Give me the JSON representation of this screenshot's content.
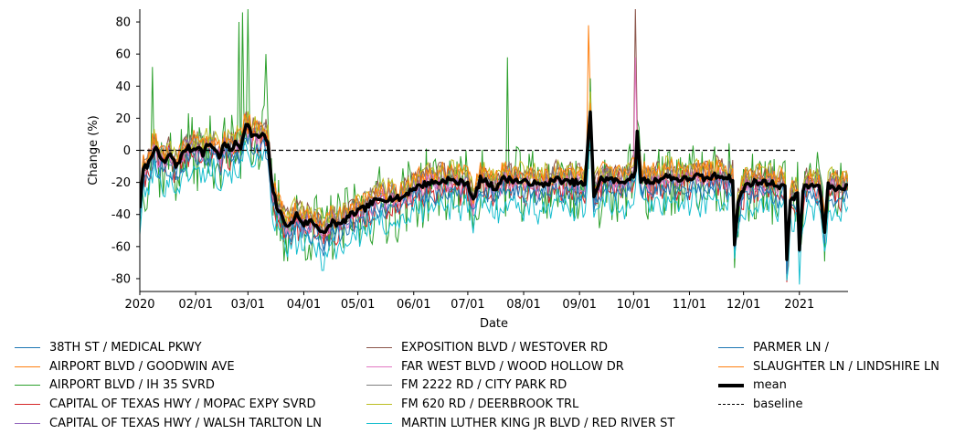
{
  "chart_data": {
    "type": "line",
    "xlabel": "Date",
    "ylabel": "Change (%)",
    "ylim": [
      -88,
      88
    ],
    "yticks": [
      -80,
      -60,
      -40,
      -20,
      0,
      20,
      40,
      60,
      80
    ],
    "xlim": [
      "2020-01-01",
      "2021-01-28"
    ],
    "xticks": [
      {
        "date": "2020-01-01",
        "label": "2020"
      },
      {
        "date": "2020-02-01",
        "label": "02/01"
      },
      {
        "date": "2020-03-01",
        "label": "03/01"
      },
      {
        "date": "2020-04-01",
        "label": "04/01"
      },
      {
        "date": "2020-05-01",
        "label": "05/01"
      },
      {
        "date": "2020-06-01",
        "label": "06/01"
      },
      {
        "date": "2020-07-01",
        "label": "07/01"
      },
      {
        "date": "2020-08-01",
        "label": "08/01"
      },
      {
        "date": "2020-09-01",
        "label": "09/01"
      },
      {
        "date": "2020-10-01",
        "label": "10/01"
      },
      {
        "date": "2020-11-01",
        "label": "11/01"
      },
      {
        "date": "2020-12-01",
        "label": "12/01"
      },
      {
        "date": "2021-01-01",
        "label": "2021"
      }
    ],
    "baseline": 0,
    "grid": false,
    "legend_position": "below",
    "mean_keypoints": [
      [
        "2020-01-01",
        -35
      ],
      [
        "2020-01-03",
        -12
      ],
      [
        "2020-01-06",
        -8
      ],
      [
        "2020-01-09",
        2
      ],
      [
        "2020-01-12",
        -4
      ],
      [
        "2020-01-15",
        -8
      ],
      [
        "2020-01-18",
        -2
      ],
      [
        "2020-01-21",
        -10
      ],
      [
        "2020-01-24",
        -4
      ],
      [
        "2020-01-27",
        2
      ],
      [
        "2020-01-30",
        0
      ],
      [
        "2020-02-02",
        3
      ],
      [
        "2020-02-05",
        -2
      ],
      [
        "2020-02-08",
        4
      ],
      [
        "2020-02-11",
        2
      ],
      [
        "2020-02-14",
        -4
      ],
      [
        "2020-02-17",
        4
      ],
      [
        "2020-02-20",
        0
      ],
      [
        "2020-02-23",
        4
      ],
      [
        "2020-02-26",
        2
      ],
      [
        "2020-02-29",
        18
      ],
      [
        "2020-03-03",
        10
      ],
      [
        "2020-03-06",
        8
      ],
      [
        "2020-03-09",
        10
      ],
      [
        "2020-03-12",
        5
      ],
      [
        "2020-03-14",
        -20
      ],
      [
        "2020-03-17",
        -35
      ],
      [
        "2020-03-20",
        -42
      ],
      [
        "2020-03-24",
        -48
      ],
      [
        "2020-03-28",
        -40
      ],
      [
        "2020-04-01",
        -46
      ],
      [
        "2020-04-05",
        -44
      ],
      [
        "2020-04-09",
        -48
      ],
      [
        "2020-04-13",
        -52
      ],
      [
        "2020-04-17",
        -44
      ],
      [
        "2020-04-21",
        -47
      ],
      [
        "2020-04-25",
        -42
      ],
      [
        "2020-05-01",
        -38
      ],
      [
        "2020-05-05",
        -36
      ],
      [
        "2020-05-10",
        -32
      ],
      [
        "2020-05-15",
        -30
      ],
      [
        "2020-05-20",
        -30
      ],
      [
        "2020-05-25",
        -30
      ],
      [
        "2020-05-31",
        -24
      ],
      [
        "2020-06-05",
        -22
      ],
      [
        "2020-06-10",
        -20
      ],
      [
        "2020-06-15",
        -20
      ],
      [
        "2020-06-20",
        -18
      ],
      [
        "2020-06-25",
        -20
      ],
      [
        "2020-07-01",
        -20
      ],
      [
        "2020-07-04",
        -32
      ],
      [
        "2020-07-08",
        -18
      ],
      [
        "2020-07-12",
        -20
      ],
      [
        "2020-07-16",
        -24
      ],
      [
        "2020-07-20",
        -18
      ],
      [
        "2020-07-25",
        -18
      ],
      [
        "2020-07-31",
        -20
      ],
      [
        "2020-08-05",
        -20
      ],
      [
        "2020-08-10",
        -22
      ],
      [
        "2020-08-15",
        -20
      ],
      [
        "2020-08-20",
        -18
      ],
      [
        "2020-08-25",
        -20
      ],
      [
        "2020-08-31",
        -20
      ],
      [
        "2020-09-04",
        -22
      ],
      [
        "2020-09-07",
        24
      ],
      [
        "2020-09-09",
        -28
      ],
      [
        "2020-09-13",
        -18
      ],
      [
        "2020-09-18",
        -18
      ],
      [
        "2020-09-23",
        -20
      ],
      [
        "2020-09-28",
        -18
      ],
      [
        "2020-10-02",
        -14
      ],
      [
        "2020-10-03",
        10
      ],
      [
        "2020-10-05",
        -18
      ],
      [
        "2020-10-10",
        -20
      ],
      [
        "2020-10-15",
        -18
      ],
      [
        "2020-10-20",
        -16
      ],
      [
        "2020-10-25",
        -18
      ],
      [
        "2020-10-31",
        -18
      ],
      [
        "2020-11-05",
        -16
      ],
      [
        "2020-11-10",
        -18
      ],
      [
        "2020-11-15",
        -16
      ],
      [
        "2020-11-20",
        -16
      ],
      [
        "2020-11-25",
        -18
      ],
      [
        "2020-11-26",
        -60
      ],
      [
        "2020-11-28",
        -32
      ],
      [
        "2020-12-02",
        -22
      ],
      [
        "2020-12-06",
        -20
      ],
      [
        "2020-12-10",
        -20
      ],
      [
        "2020-12-15",
        -20
      ],
      [
        "2020-12-20",
        -22
      ],
      [
        "2020-12-24",
        -22
      ],
      [
        "2020-12-25",
        -70
      ],
      [
        "2020-12-27",
        -30
      ],
      [
        "2020-12-31",
        -28
      ],
      [
        "2021-01-01",
        -62
      ],
      [
        "2021-01-03",
        -24
      ],
      [
        "2021-01-07",
        -22
      ],
      [
        "2021-01-12",
        -22
      ],
      [
        "2021-01-15",
        -50
      ],
      [
        "2021-01-17",
        -22
      ],
      [
        "2021-01-22",
        -24
      ],
      [
        "2021-01-28",
        -22
      ]
    ],
    "series": [
      {
        "name": "38TH ST / MEDICAL PKWY",
        "color": "#1f77b4",
        "offset": -4,
        "noise": 6,
        "seed": 11
      },
      {
        "name": "AIRPORT BLVD / GOODWIN AVE",
        "color": "#ff7f0e",
        "offset": 4,
        "noise": 7,
        "seed": 23
      },
      {
        "name": "AIRPORT BLVD / IH 35 SVRD",
        "color": "#2ca02c",
        "offset": -2,
        "noise": 24,
        "seed": 37
      },
      {
        "name": "CAPITAL OF TEXAS HWY / MOPAC EXPY SVRD",
        "color": "#d62728",
        "offset": -3,
        "noise": 10,
        "seed": 41
      },
      {
        "name": "CAPITAL OF TEXAS HWY / WALSH TARLTON LN",
        "color": "#9467bd",
        "offset": 2,
        "noise": 6,
        "seed": 53
      },
      {
        "name": "EXPOSITION BLVD / WESTOVER RD",
        "color": "#8c564b",
        "offset": 6,
        "noise": 7,
        "seed": 67
      },
      {
        "name": "FAR WEST BLVD / WOOD HOLLOW DR",
        "color": "#e377c2",
        "offset": 0,
        "noise": 6,
        "seed": 71
      },
      {
        "name": "FM 2222 RD / CITY PARK RD",
        "color": "#7f7f7f",
        "offset": 5,
        "noise": 6,
        "seed": 83
      },
      {
        "name": "FM 620 RD / DEERBROOK TRL",
        "color": "#bcbd22",
        "offset": 7,
        "noise": 6,
        "seed": 97
      },
      {
        "name": "MARTIN LUTHER KING JR BLVD / RED RIVER ST",
        "color": "#17becf",
        "offset": -14,
        "noise": 8,
        "seed": 101
      },
      {
        "name": "PARMER LN /",
        "color": "#1f77b4",
        "offset": -6,
        "noise": 6,
        "seed": 113
      },
      {
        "name": "SLAUGHTER LN / LINDSHIRE LN",
        "color": "#ff7f0e",
        "offset": 6,
        "noise": 6,
        "seed": 127
      }
    ],
    "spikes": [
      {
        "series": 1,
        "date": "2020-09-06",
        "value": 78
      },
      {
        "series": 5,
        "date": "2020-10-02",
        "value": 90
      },
      {
        "series": 6,
        "date": "2020-10-02",
        "value": 58
      },
      {
        "series": 2,
        "date": "2020-02-25",
        "value": 80
      },
      {
        "series": 2,
        "date": "2020-02-27",
        "value": 86
      },
      {
        "series": 2,
        "date": "2020-03-01",
        "value": 88
      },
      {
        "series": 2,
        "date": "2020-03-11",
        "value": 60
      },
      {
        "series": 2,
        "date": "2020-01-08",
        "value": 52
      },
      {
        "series": 2,
        "date": "2020-07-23",
        "value": 58
      }
    ],
    "legend": {
      "columns": [
        [
          {
            "label": "38TH ST / MEDICAL PKWY",
            "color": "#1f77b4",
            "style": "line"
          },
          {
            "label": "AIRPORT BLVD / GOODWIN AVE",
            "color": "#ff7f0e",
            "style": "line"
          },
          {
            "label": "AIRPORT BLVD / IH 35 SVRD",
            "color": "#2ca02c",
            "style": "line"
          },
          {
            "label": "CAPITAL OF TEXAS HWY / MOPAC EXPY SVRD",
            "color": "#d62728",
            "style": "line"
          },
          {
            "label": "CAPITAL OF TEXAS HWY / WALSH TARLTON LN",
            "color": "#9467bd",
            "style": "line"
          }
        ],
        [
          {
            "label": "EXPOSITION BLVD / WESTOVER RD",
            "color": "#8c564b",
            "style": "line"
          },
          {
            "label": "FAR WEST BLVD / WOOD HOLLOW DR",
            "color": "#e377c2",
            "style": "line"
          },
          {
            "label": "FM 2222 RD / CITY PARK RD",
            "color": "#7f7f7f",
            "style": "line"
          },
          {
            "label": "FM 620 RD / DEERBROOK TRL",
            "color": "#bcbd22",
            "style": "line"
          },
          {
            "label": "MARTIN LUTHER KING JR BLVD / RED RIVER ST",
            "color": "#17becf",
            "style": "line"
          }
        ],
        [
          {
            "label": "PARMER LN /",
            "color": "#1f77b4",
            "style": "line"
          },
          {
            "label": "SLAUGHTER LN / LINDSHIRE LN",
            "color": "#ff7f0e",
            "style": "line"
          },
          {
            "label": "mean",
            "color": "#000000",
            "style": "thick"
          },
          {
            "label": "baseline",
            "color": "#000000",
            "style": "dashed"
          }
        ]
      ]
    }
  }
}
